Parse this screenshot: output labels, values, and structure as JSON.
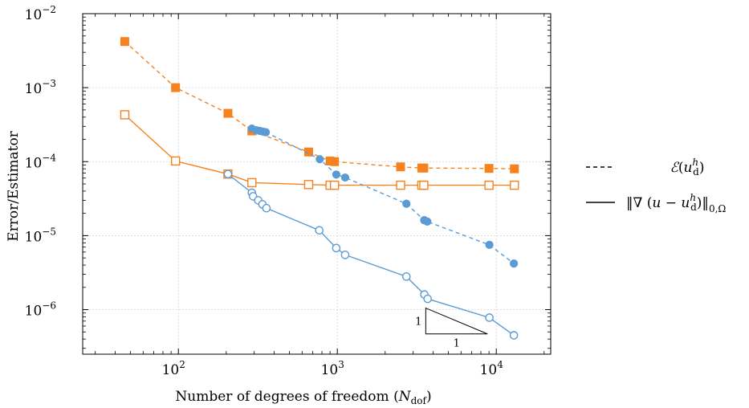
{
  "chart_data": {
    "type": "line",
    "xscale": "log",
    "yscale": "log",
    "xlim": [
      25,
      22000
    ],
    "ylim": [
      2.5e-07,
      0.01
    ],
    "grid": true,
    "grid_style": "dotted",
    "xlabel": "Number of degrees of freedom (N_dof)",
    "xlabel_main": "Number of degrees of freedom (",
    "xlabel_var": "N",
    "xlabel_sub": "dof",
    "xlabel_close": ")",
    "ylabel": "Error/Estimator",
    "x_ticks": [
      {
        "value": 100,
        "base": "10",
        "exp": "2"
      },
      {
        "value": 1000,
        "base": "10",
        "exp": "3"
      },
      {
        "value": 10000,
        "base": "10",
        "exp": "4"
      }
    ],
    "y_ticks": [
      {
        "value": 1e-06,
        "base": "10",
        "exp": "−6"
      },
      {
        "value": 1e-05,
        "base": "10",
        "exp": "−5"
      },
      {
        "value": 0.0001,
        "base": "10",
        "exp": "−4"
      },
      {
        "value": 0.001,
        "base": "10",
        "exp": "−3"
      },
      {
        "value": 0.01,
        "base": "10",
        "exp": "−2"
      }
    ],
    "colors": {
      "orange": "#f5821f",
      "blue": "#5b9bd5",
      "axis": "#000000",
      "grid": "#c8c8c8"
    },
    "legend": {
      "placement": "right",
      "entries": [
        {
          "line_style": "dashed",
          "label": "ℰ(u_d^h)"
        },
        {
          "line_style": "solid",
          "label": "‖∇(u − u_d^h)‖_{0,Ω}"
        }
      ]
    },
    "slope_triangle": {
      "rise_label": "1",
      "run_label": "1"
    },
    "series": [
      {
        "color": "#f5821f",
        "line_style": "dashed",
        "marker": "square-filled",
        "x": [
          46,
          96,
          205,
          290,
          660,
          900,
          960,
          2500,
          3400,
          3500,
          9000,
          13000
        ],
        "y": [
          0.0042,
          0.001,
          0.00045,
          0.00026,
          0.000135,
          0.000102,
          0.0001,
          8.5e-05,
          8.2e-05,
          8.2e-05,
          8.1e-05,
          8e-05
        ]
      },
      {
        "color": "#f5821f",
        "line_style": "solid",
        "marker": "square-open",
        "x": [
          46,
          96,
          205,
          290,
          660,
          900,
          960,
          2500,
          3400,
          3500,
          9000,
          13000
        ],
        "y": [
          0.00043,
          0.000102,
          6.8e-05,
          5.2e-05,
          4.9e-05,
          4.8e-05,
          4.8e-05,
          4.8e-05,
          4.8e-05,
          4.8e-05,
          4.8e-05,
          4.8e-05
        ]
      },
      {
        "color": "#5b9bd5",
        "line_style": "dashed",
        "marker": "circle-filled",
        "x": [
          290,
          310,
          325,
          340,
          355,
          775,
          985,
          1120,
          2720,
          3520,
          3680,
          9050,
          12900
        ],
        "y": [
          0.00028,
          0.000265,
          0.00026,
          0.000255,
          0.00025,
          0.000108,
          6.7e-05,
          6.1e-05,
          2.7e-05,
          1.62e-05,
          1.55e-05,
          7.5e-06,
          4.2e-06
        ]
      },
      {
        "color": "#5b9bd5",
        "line_style": "solid",
        "marker": "circle-open",
        "x": [
          205,
          290,
          295,
          318,
          338,
          358,
          770,
          985,
          1120,
          2720,
          3530,
          3700,
          9050,
          12900
        ],
        "y": [
          6.8e-05,
          3.8e-05,
          3.4e-05,
          3e-05,
          2.65e-05,
          2.35e-05,
          1.18e-05,
          6.8e-06,
          5.5e-06,
          2.8e-06,
          1.6e-06,
          1.4e-06,
          7.8e-07,
          4.5e-07
        ]
      }
    ]
  }
}
